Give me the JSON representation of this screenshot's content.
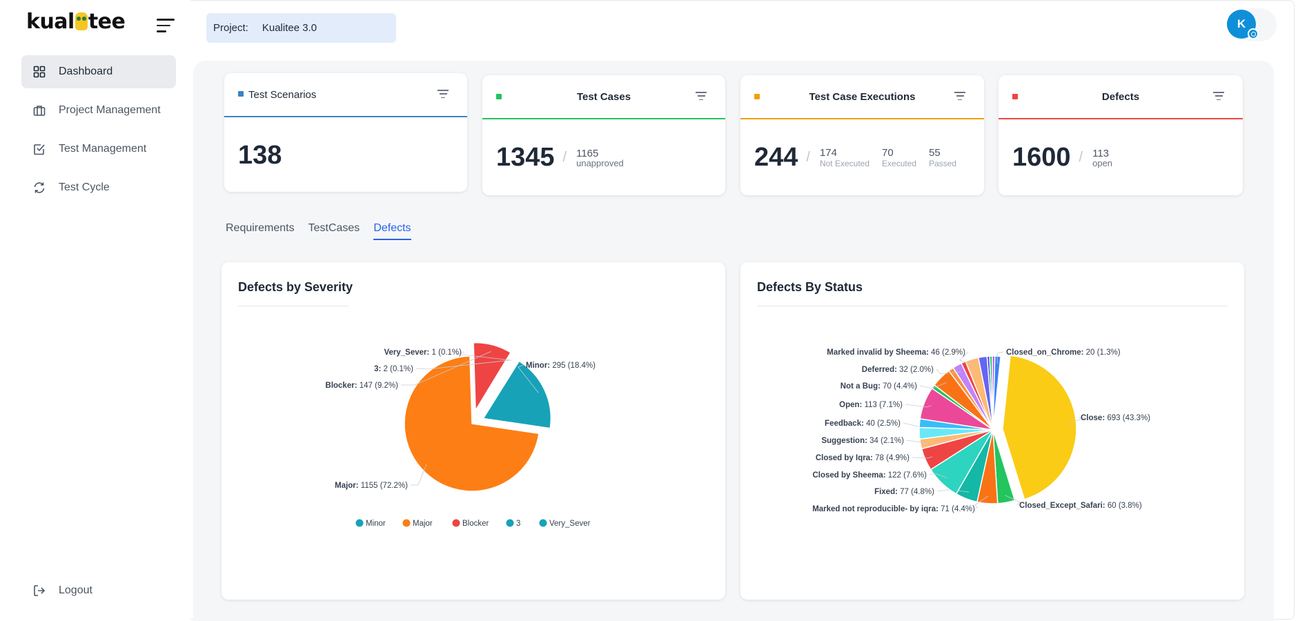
{
  "sidebar": {
    "logo_text_a": "kual",
    "logo_text_b": "tee",
    "items": [
      {
        "label": "Dashboard",
        "active": true
      },
      {
        "label": "Project Management"
      },
      {
        "label": "Test Management"
      },
      {
        "label": "Test Cycle"
      }
    ],
    "logout": "Logout"
  },
  "header": {
    "project_label": "Project:",
    "project_name": "Kualitee 3.0",
    "avatar_initial": "K"
  },
  "stats": {
    "scenarios": {
      "title": "Test Scenarios",
      "color": "#3b82c4",
      "value": "138"
    },
    "cases": {
      "title": "Test Cases",
      "color": "#22c55e",
      "value": "1345",
      "sub_value": "1165",
      "sub_label": "unapproved"
    },
    "executions": {
      "title": "Test Case Executions",
      "color": "#f59e0b",
      "value": "244",
      "subs": [
        {
          "n": "174",
          "t": "Not Executed"
        },
        {
          "n": "70",
          "t": "Executed"
        },
        {
          "n": "55",
          "t": "Passed"
        }
      ]
    },
    "defects": {
      "title": "Defects",
      "color": "#ef4444",
      "value": "1600",
      "sub_value": "113",
      "sub_label": "open"
    }
  },
  "tabs": [
    "Requirements",
    "TestCases",
    "Defects"
  ],
  "active_tab": "Defects",
  "chart_data": [
    {
      "type": "pie",
      "title": "Defects by Severity",
      "slices": [
        {
          "name": "Minor",
          "value": 295,
          "label": "Minor: 295 (18.4%)",
          "color": "#17a2b8"
        },
        {
          "name": "Major",
          "value": 1155,
          "label": "Major: 1155 (72.2%)",
          "color": "#fd7e14"
        },
        {
          "name": "Blocker",
          "value": 147,
          "label": "Blocker: 147 (9.2%)",
          "color": "#ef4444"
        },
        {
          "name": "3",
          "value": 2,
          "label": "3: 2 (0.1%)",
          "color": "#17a2b8"
        },
        {
          "name": "Very_Sever",
          "value": 1,
          "label": "Very_Sever: 1 (0.1%)",
          "color": "#17a2b8"
        }
      ],
      "legend": [
        "Minor",
        "Major",
        "Blocker",
        "3",
        "Very_Sever"
      ],
      "legend_position": "bottom"
    },
    {
      "type": "pie",
      "title": "Defects By Status",
      "slices": [
        {
          "name": "Close",
          "value": 693,
          "label": "Close: 693 (43.3%)",
          "color": "#facc15"
        },
        {
          "name": "Closed_Except_Safari",
          "value": 60,
          "label": "Closed_Except_Safari: 60 (3.8%)",
          "color": "#22c55e"
        },
        {
          "name": "Marked not reproducible- by iqra",
          "value": 71,
          "label": "Marked not reproducible- by iqra: 71 (4.4%)",
          "color": "#f97316"
        },
        {
          "name": "Fixed",
          "value": 77,
          "label": "Fixed: 77 (4.8%)",
          "color": "#14b8a6"
        },
        {
          "name": "Closed by Sheema",
          "value": 122,
          "label": "Closed by Sheema: 122 (7.6%)",
          "color": "#2dd4bf"
        },
        {
          "name": "Closed by Iqra",
          "value": 78,
          "label": "Closed by Iqra: 78 (4.9%)",
          "color": "#ef4444"
        },
        {
          "name": "Suggestion",
          "value": 34,
          "label": "Suggestion: 34 (2.1%)",
          "color": "#fdba74"
        },
        {
          "name": "Feedback",
          "value": 40,
          "label": "Feedback: 40 (2.5%)",
          "color": "#67e8f9"
        },
        {
          "name": "",
          "value": 30,
          "label": "",
          "color": "#38bdf8"
        },
        {
          "name": "Open",
          "value": 113,
          "label": "Open: 113 (7.1%)",
          "color": "#ec4899"
        },
        {
          "name": "",
          "value": 14,
          "label": "",
          "color": "#22c55e"
        },
        {
          "name": "Not a Bug",
          "value": 70,
          "label": "Not a Bug: 70 (4.4%)",
          "color": "#f97316"
        },
        {
          "name": "",
          "value": 18,
          "label": "",
          "color": "#fb923c"
        },
        {
          "name": "Deferred",
          "value": 32,
          "label": "Deferred: 32 (2.0%)",
          "color": "#c084fc"
        },
        {
          "name": "",
          "value": 16,
          "label": "",
          "color": "#ef4444"
        },
        {
          "name": "Marked invalid by Sheema",
          "value": 46,
          "label": "Marked invalid by Sheema: 46 (2.9%)",
          "color": "#fdba74"
        },
        {
          "name": "",
          "value": 30,
          "label": "",
          "color": "#6366f1"
        },
        {
          "name": "",
          "value": 9,
          "label": "",
          "color": "#4f46e5"
        },
        {
          "name": "",
          "value": 9,
          "label": "",
          "color": "#22c55e"
        },
        {
          "name": "",
          "value": 9,
          "label": "",
          "color": "#a855f7"
        },
        {
          "name": "Closed_on_Chrome",
          "value": 20,
          "label": "Closed_on_Chrome: 20 (1.3%)",
          "color": "#3b82f6"
        }
      ]
    }
  ]
}
